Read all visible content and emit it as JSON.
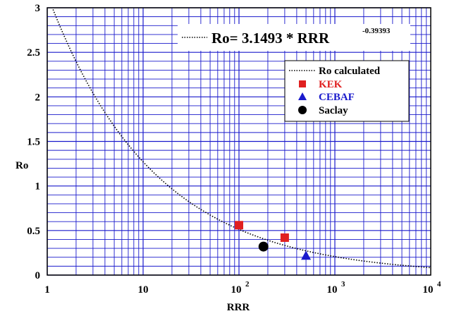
{
  "chart_data": {
    "type": "scatter",
    "xscale": "log",
    "xlim": [
      1,
      10000
    ],
    "ylim": [
      0,
      3
    ],
    "xlabel": "RRR",
    "ylabel": "Ro",
    "grid": true,
    "legend_position": "top-right",
    "x_ticks": [
      {
        "value": 1,
        "base": "1",
        "exp": ""
      },
      {
        "value": 10,
        "base": "10",
        "exp": ""
      },
      {
        "value": 100,
        "base": "10",
        "exp": "2"
      },
      {
        "value": 1000,
        "base": "10",
        "exp": "3"
      },
      {
        "value": 10000,
        "base": "10",
        "exp": "4"
      }
    ],
    "y_ticks": [
      {
        "value": 0,
        "label": "0"
      },
      {
        "value": 0.5,
        "label": "0.5"
      },
      {
        "value": 1,
        "label": "1"
      },
      {
        "value": 1.5,
        "label": "1.5"
      },
      {
        "value": 2,
        "label": "2"
      },
      {
        "value": 2.5,
        "label": "2.5"
      },
      {
        "value": 3,
        "label": "3"
      }
    ],
    "fit": {
      "name": "Ro calculated",
      "equation": "Ro= 3.1493 * RRR",
      "exponent_label": "-0.39393",
      "coefficient": 3.1493,
      "exponent": -0.39393,
      "x_range": [
        1.15,
        10000
      ],
      "color": "#000000",
      "style": "dotted"
    },
    "series": [
      {
        "name": "KEK",
        "marker": "square",
        "color": "#e02020",
        "points": [
          [
            100,
            0.56
          ],
          [
            300,
            0.42
          ]
        ]
      },
      {
        "name": "CEBAF",
        "marker": "triangle",
        "color": "#1a1acc",
        "points": [
          [
            500,
            0.22
          ]
        ]
      },
      {
        "name": "Saclay",
        "marker": "circle",
        "color": "#000000",
        "points": [
          [
            180,
            0.32
          ]
        ]
      }
    ],
    "grid_color": "#1a1acc",
    "axis_color": "#000000"
  }
}
